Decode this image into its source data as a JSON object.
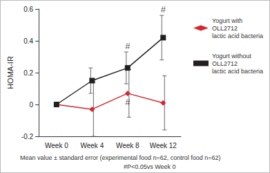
{
  "chart_data": {
    "type": "line",
    "y_label": "HOMA-IR",
    "categories": [
      "Week 0",
      "Week 4",
      "Week 8",
      "Week 12"
    ],
    "ylim": [
      -0.2,
      0.6
    ],
    "yticks": [
      -0.2,
      0,
      0.2,
      0.4,
      0.6
    ],
    "grid": false,
    "legend": "right",
    "series": [
      {
        "name": "Yogurt with\nOLL2712\nlactic acid bacteria",
        "color": "#d7262d",
        "marker": "diamond",
        "values": [
          0,
          -0.03,
          0.07,
          0.01
        ],
        "errors": [
          0,
          0.17,
          0.15,
          0.17
        ]
      },
      {
        "name": "Yogurt without\nOLL2712\nlactic acid bacteria",
        "color": "#231f20",
        "marker": "square",
        "values": [
          0,
          0.15,
          0.23,
          0.42
        ],
        "errors": [
          0,
          0.08,
          0.1,
          0.14
        ]
      }
    ],
    "annotations": [
      {
        "text": "#",
        "series": 1,
        "category": "Week 8",
        "position": "above"
      },
      {
        "text": "#",
        "series": 1,
        "category": "Week 12",
        "position": "above"
      },
      {
        "text": "#",
        "series": 0,
        "category": "Week 8",
        "position": "below"
      }
    ],
    "notes": [
      "Mean value ± standard error (experimental food n=62, control food n=62)",
      "#P<0.05vs Week 0"
    ]
  }
}
